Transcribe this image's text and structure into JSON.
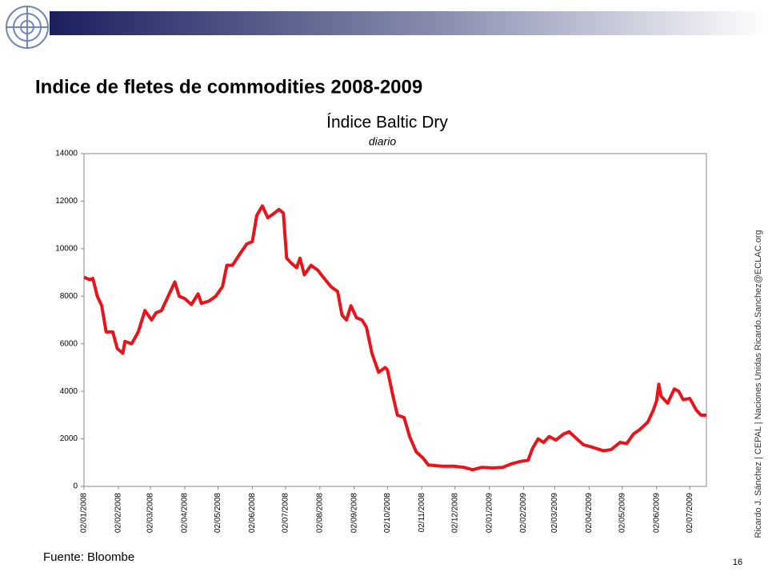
{
  "header": {
    "title": "Indice de fletes de commodities 2008-2009"
  },
  "chart_data": {
    "type": "line",
    "title": "Índice Baltic Dry",
    "subtitle": "diario",
    "x": [
      "2008-01-02",
      "2008-01-07",
      "2008-01-10",
      "2008-01-14",
      "2008-01-18",
      "2008-01-22",
      "2008-01-28",
      "2008-02-01",
      "2008-02-06",
      "2008-02-08",
      "2008-02-14",
      "2008-02-20",
      "2008-02-26",
      "2008-03-03",
      "2008-03-07",
      "2008-03-12",
      "2008-03-18",
      "2008-03-24",
      "2008-03-28",
      "2008-04-02",
      "2008-04-08",
      "2008-04-14",
      "2008-04-17",
      "2008-04-24",
      "2008-04-30",
      "2008-05-06",
      "2008-05-10",
      "2008-05-15",
      "2008-05-22",
      "2008-05-28",
      "2008-06-02",
      "2008-06-06",
      "2008-06-11",
      "2008-06-16",
      "2008-06-22",
      "2008-06-26",
      "2008-06-30",
      "2008-07-03",
      "2008-07-07",
      "2008-07-12",
      "2008-07-15",
      "2008-07-19",
      "2008-07-25",
      "2008-07-31",
      "2008-08-05",
      "2008-08-12",
      "2008-08-18",
      "2008-08-22",
      "2008-08-26",
      "2008-08-30",
      "2008-09-04",
      "2008-09-09",
      "2008-09-13",
      "2008-09-18",
      "2008-09-24",
      "2008-09-30",
      "2008-10-02",
      "2008-10-07",
      "2008-10-11",
      "2008-10-17",
      "2008-10-22",
      "2008-10-28",
      "2008-11-03",
      "2008-11-08",
      "2008-11-20",
      "2008-12-01",
      "2008-12-10",
      "2008-12-18",
      "2008-12-26",
      "2009-01-05",
      "2009-01-14",
      "2009-01-22",
      "2009-01-30",
      "2009-02-06",
      "2009-02-10",
      "2009-02-15",
      "2009-02-20",
      "2009-02-25",
      "2009-03-03",
      "2009-03-10",
      "2009-03-15",
      "2009-03-22",
      "2009-03-28",
      "2009-04-05",
      "2009-04-15",
      "2009-04-22",
      "2009-04-30",
      "2009-05-06",
      "2009-05-12",
      "2009-05-18",
      "2009-05-25",
      "2009-05-30",
      "2009-06-02",
      "2009-06-04",
      "2009-06-06",
      "2009-06-12",
      "2009-06-18",
      "2009-06-22",
      "2009-06-26",
      "2009-07-02",
      "2009-07-08",
      "2009-07-12",
      "2009-07-17"
    ],
    "series": [
      {
        "color": "#e8141b",
        "values": [
          8800,
          8700,
          8750,
          8000,
          7600,
          6500,
          6500,
          5800,
          5600,
          6100,
          6000,
          6500,
          7400,
          7000,
          7300,
          7400,
          8000,
          8600,
          8000,
          7900,
          7650,
          8100,
          7700,
          7800,
          8000,
          8400,
          9300,
          9300,
          9800,
          10200,
          10300,
          11400,
          11800,
          11300,
          11500,
          11650,
          11500,
          9600,
          9400,
          9200,
          9600,
          8900,
          9300,
          9100,
          8800,
          8400,
          8200,
          7200,
          7000,
          7600,
          7100,
          7000,
          6700,
          5600,
          4800,
          5000,
          4900,
          3800,
          3000,
          2900,
          2100,
          1450,
          1200,
          900,
          850,
          850,
          800,
          700,
          800,
          780,
          800,
          950,
          1050,
          1100,
          1600,
          2000,
          1850,
          2100,
          1950,
          2200,
          2300,
          2000,
          1750,
          1650,
          1500,
          1550,
          1850,
          1800,
          2200,
          2400,
          2700,
          3200,
          3600,
          4300,
          3800,
          3500,
          4100,
          4000,
          3650,
          3700,
          3200,
          3000,
          3000
        ]
      }
    ],
    "xlim": [
      "2008-01-02",
      "2009-07-17"
    ],
    "xticks": [
      {
        "value": "2008-01-02",
        "label": "02/01/2008"
      },
      {
        "value": "2008-02-02",
        "label": "02/02/2008"
      },
      {
        "value": "2008-03-02",
        "label": "02/03/2008"
      },
      {
        "value": "2008-04-02",
        "label": "02/04/2008"
      },
      {
        "value": "2008-05-02",
        "label": "02/05/2008"
      },
      {
        "value": "2008-06-02",
        "label": "02/06/2008"
      },
      {
        "value": "2008-07-02",
        "label": "02/07/2008"
      },
      {
        "value": "2008-08-02",
        "label": "02/08/2008"
      },
      {
        "value": "2008-09-02",
        "label": "02/09/2008"
      },
      {
        "value": "2008-10-02",
        "label": "02/10/2008"
      },
      {
        "value": "2008-11-02",
        "label": "02/11/2008"
      },
      {
        "value": "2008-12-02",
        "label": "02/12/2008"
      },
      {
        "value": "2009-01-02",
        "label": "02/01/2009"
      },
      {
        "value": "2009-02-02",
        "label": "02/02/2009"
      },
      {
        "value": "2009-03-02",
        "label": "02/03/2009"
      },
      {
        "value": "2009-04-02",
        "label": "02/04/2009"
      },
      {
        "value": "2009-05-02",
        "label": "02/05/2009"
      },
      {
        "value": "2009-06-02",
        "label": "02/06/2009"
      },
      {
        "value": "2009-07-02",
        "label": "02/07/2009"
      }
    ],
    "ylim": [
      0,
      14000
    ],
    "yticks": [
      0,
      2000,
      4000,
      6000,
      8000,
      10000,
      12000,
      14000
    ],
    "grid": false
  },
  "footer": {
    "source": "Fuente: Bloombe",
    "page": "16",
    "credit": "Ricardo J. Sánchez | CEPAL | Naciones Unidas   Ricardo.Sanchez@ECLAC.org"
  }
}
